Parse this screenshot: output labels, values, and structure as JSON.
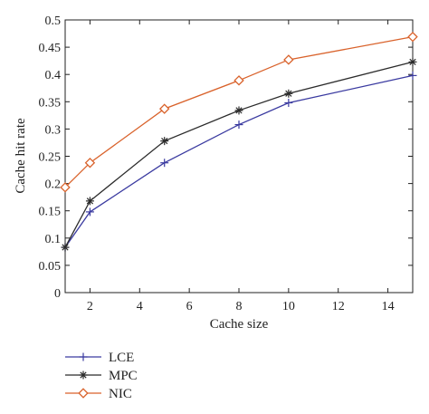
{
  "chart_data": {
    "type": "line",
    "title": "",
    "xlabel": "Cache size",
    "ylabel": "Cache hit rate",
    "xlim": [
      1,
      15
    ],
    "ylim": [
      0,
      0.5
    ],
    "xticks": [
      2,
      4,
      6,
      8,
      10,
      12,
      14
    ],
    "yticks": [
      0,
      0.05,
      0.1,
      0.15,
      0.2,
      0.25,
      0.3,
      0.35,
      0.4,
      0.45,
      0.5
    ],
    "ytick_labels": [
      "0",
      "0.05",
      "0.1",
      "0.15",
      "0.2",
      "0.25",
      "0.3",
      "0.35",
      "0.4",
      "0.45",
      "0.5"
    ],
    "grid": false,
    "legend_position": "bottom-left",
    "x": [
      1,
      2,
      5,
      8,
      10,
      15
    ],
    "series": [
      {
        "name": "LCE",
        "values": [
          0.083,
          0.148,
          0.238,
          0.308,
          0.348,
          0.398
        ],
        "color": "#3a3aa0",
        "marker": "plus"
      },
      {
        "name": "MPC",
        "values": [
          0.083,
          0.168,
          0.278,
          0.334,
          0.365,
          0.423
        ],
        "color": "#2b2b2b",
        "marker": "asterisk"
      },
      {
        "name": "NIC",
        "values": [
          0.193,
          0.238,
          0.337,
          0.389,
          0.427,
          0.469
        ],
        "color": "#d9622b",
        "marker": "diamond"
      }
    ]
  }
}
